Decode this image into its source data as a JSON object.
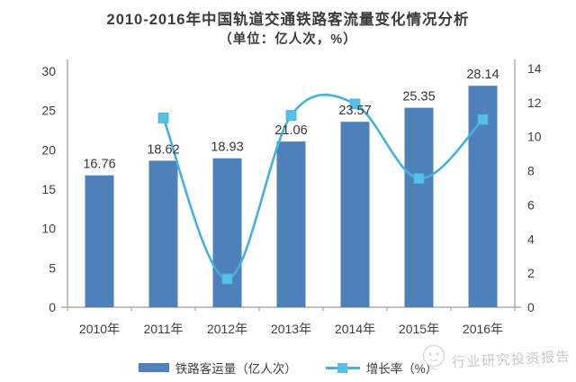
{
  "title": "2010-2016年中国轨道交通铁路客流量变化情况分析",
  "subtitle": "（单位：亿人次，%）",
  "watermark": {
    "text": "行业研究投资报告",
    "logo": "cartoon-face-logo"
  },
  "colors": {
    "bar": "#4e81ba",
    "line": "#45b1e0",
    "marker": "#58bfe9",
    "axis": "#9b9b9b",
    "tick_text": "#404040",
    "data_label": "#373737",
    "watermark": "#c9c9c9"
  },
  "chart_data": {
    "type": "combo",
    "title": "2010-2016年中国轨道交通铁路客流量变化情况分析",
    "subtitle": "（单位：亿人次，%）",
    "categories": [
      "2010年",
      "2011年",
      "2012年",
      "2013年",
      "2014年",
      "2015年",
      "2016年"
    ],
    "series": [
      {
        "name": "铁路客运量（亿人次）",
        "type": "bar",
        "axis": "left",
        "values": [
          16.76,
          18.62,
          18.93,
          21.06,
          23.57,
          25.35,
          28.14
        ],
        "labels": [
          "16.76",
          "18.62",
          "18.93",
          "21.06",
          "23.57",
          "25.35",
          "28.14"
        ]
      },
      {
        "name": "增长率（%）",
        "type": "line",
        "axis": "right",
        "values": [
          null,
          11.1,
          1.66,
          11.25,
          11.92,
          7.55,
          11.01
        ]
      }
    ],
    "left_axis": {
      "min": 0,
      "max": 30,
      "step": 5,
      "ticks": [
        "0",
        "5",
        "10",
        "15",
        "20",
        "25",
        "30"
      ]
    },
    "right_axis": {
      "min": 0,
      "max": 14,
      "step": 2,
      "ticks": [
        "0",
        "2",
        "4",
        "6",
        "8",
        "10",
        "12",
        "14"
      ]
    },
    "grid": false,
    "legend_position": "bottom"
  }
}
